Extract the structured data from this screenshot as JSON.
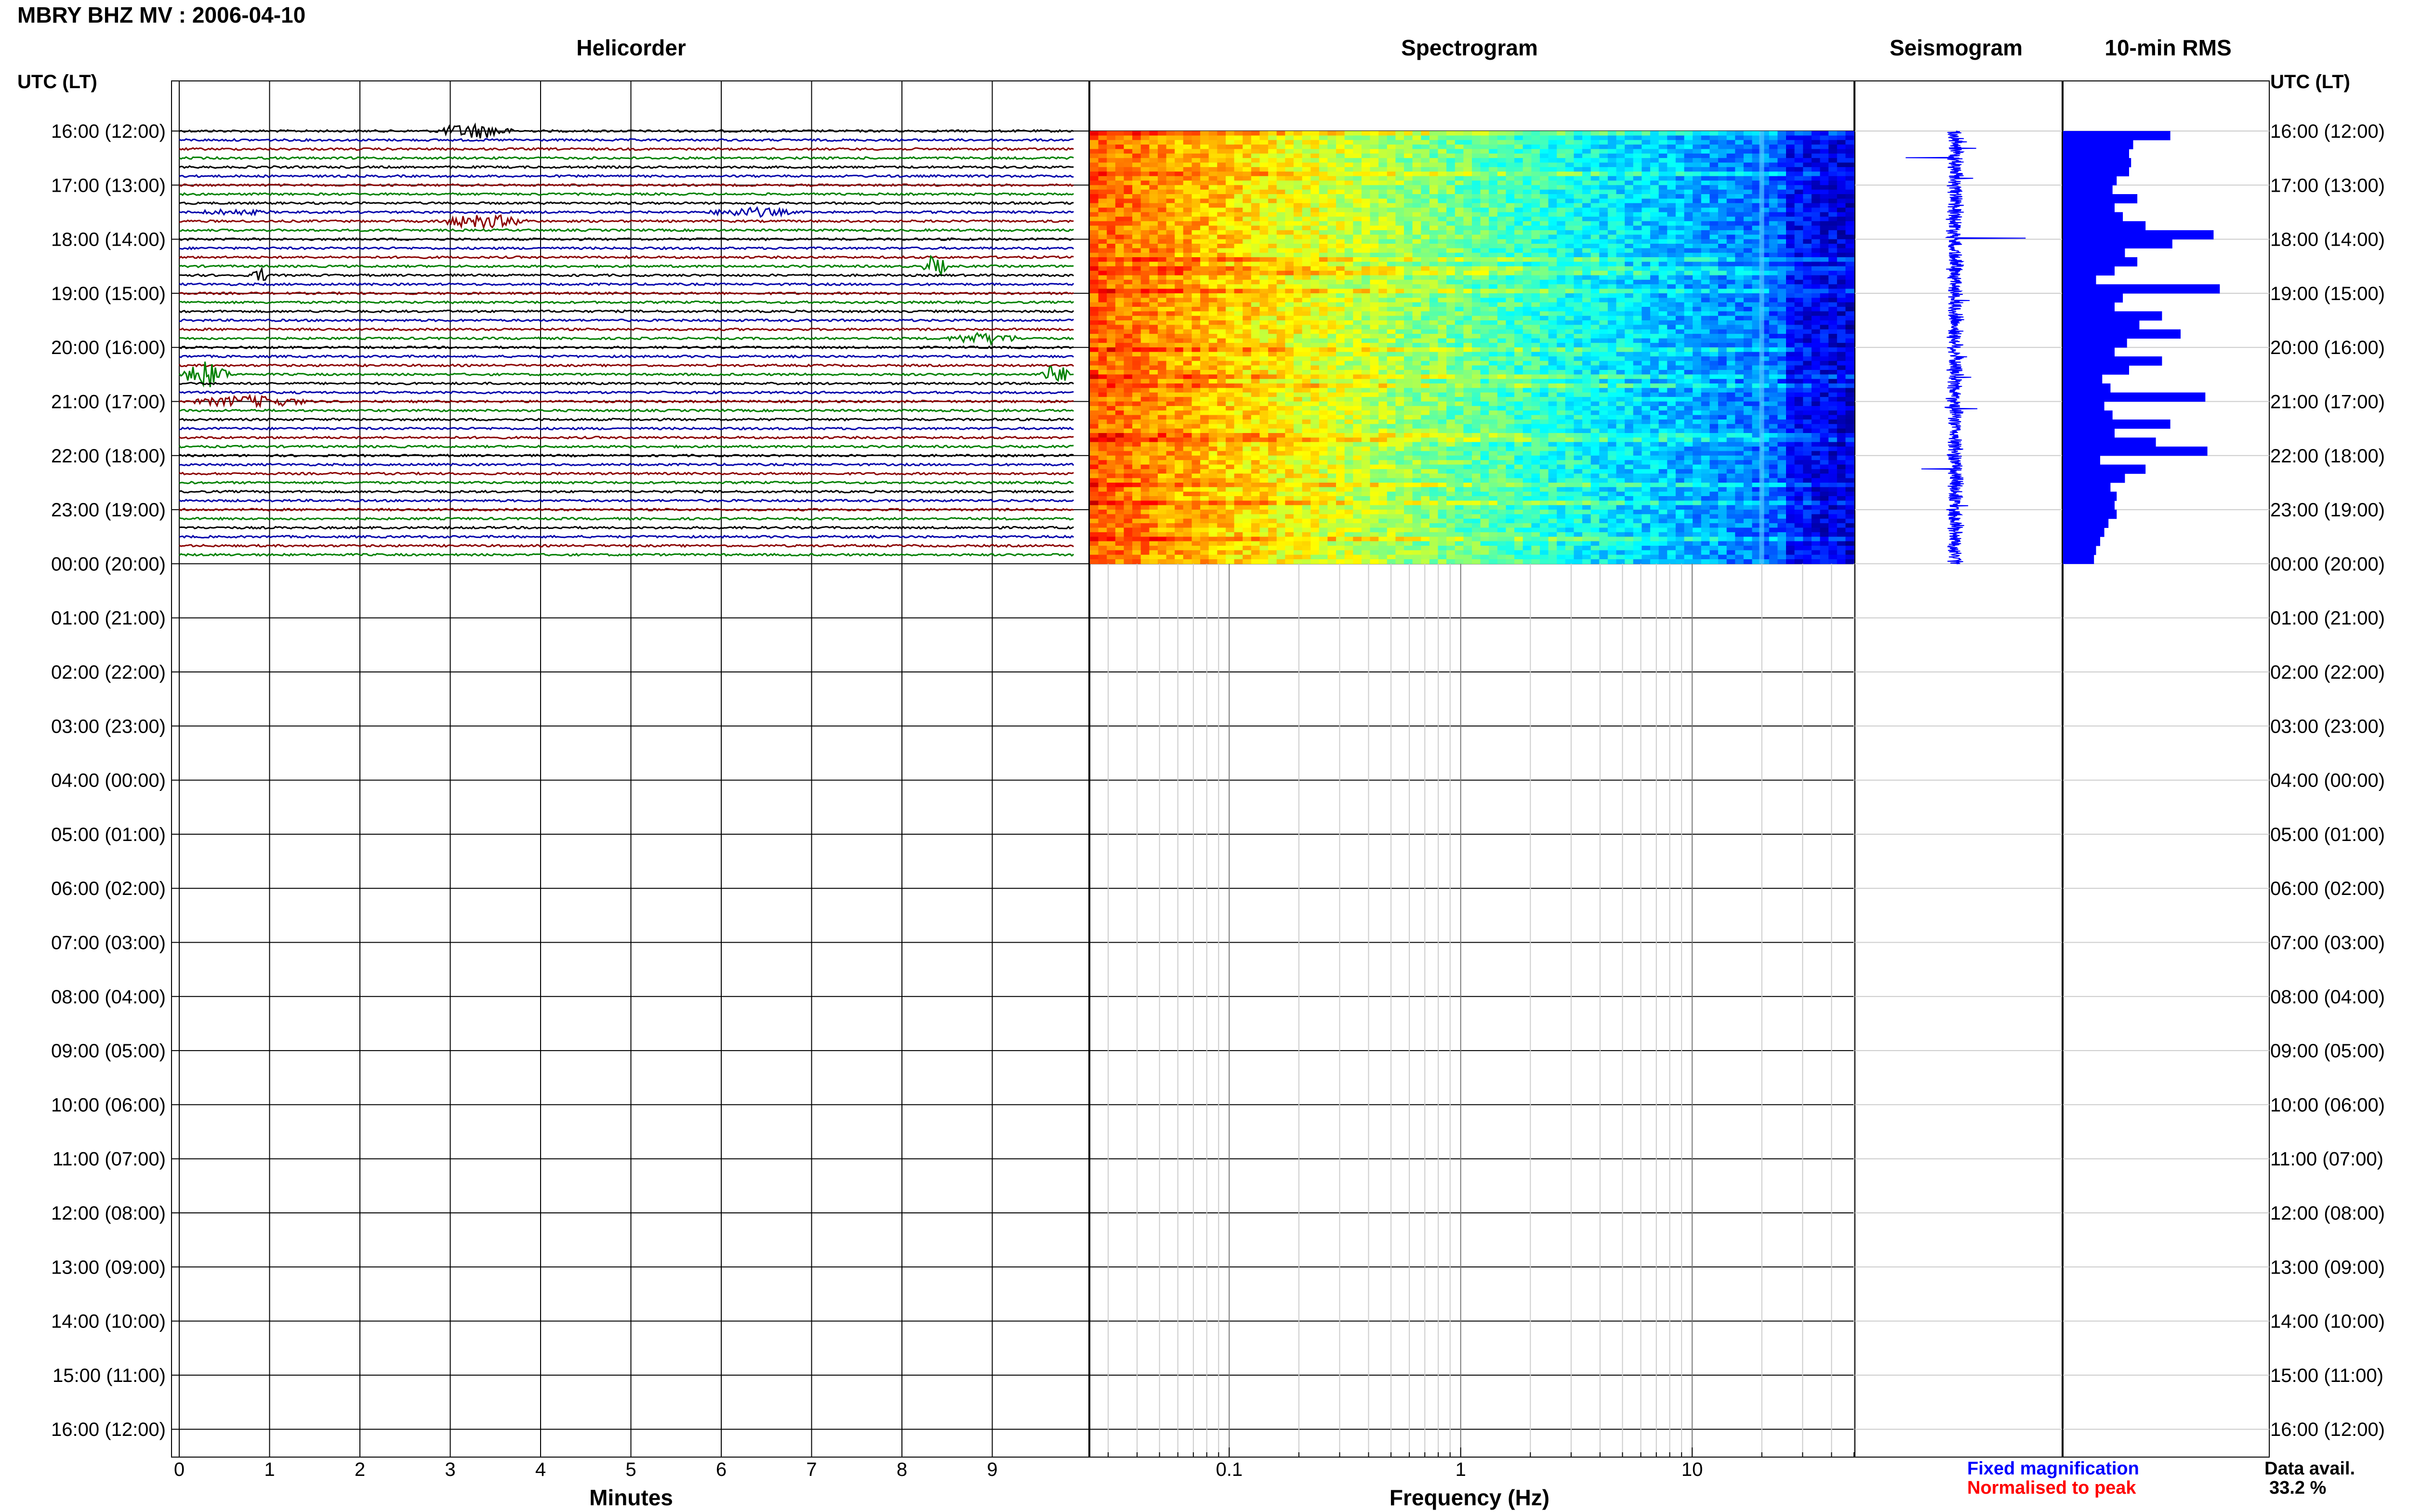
{
  "title": "MBRY BHZ MV : 2006-04-10",
  "panels": {
    "helicorder": "Helicorder",
    "spectrogram": "Spectrogram",
    "seismogram": "Seismogram",
    "rms": "10-min RMS"
  },
  "axes": {
    "utc_header_left": "UTC (LT)",
    "utc_header_right": "UTC (LT)",
    "minutes_label": "Minutes",
    "frequency_label": "Frequency (Hz)"
  },
  "legend": {
    "fixed": "Fixed magnification",
    "normalised": "Normalised to peak",
    "fixed_color": "#0000ff",
    "normalised_color": "#ff0000"
  },
  "availability": {
    "label": "Data avail.",
    "value": "33.2 %"
  },
  "colors": {
    "trace_cycle": [
      "#000000",
      "#0000aa",
      "#8b0000",
      "#008000"
    ],
    "rms_bar": "#0000ff",
    "seismogram": "#0000ff"
  },
  "chart_data": [
    {
      "type": "line",
      "name": "helicorder",
      "xlabel": "Minutes",
      "x_ticks": [
        0,
        1,
        2,
        3,
        4,
        5,
        6,
        7,
        8,
        9
      ],
      "xlim": [
        0,
        10
      ],
      "rows_per_hour": 6,
      "rows_recorded": 48,
      "row_colors_cycle": [
        "black",
        "blue",
        "darkred",
        "green"
      ],
      "y_ticks": [
        "16:00 (12:00)",
        "17:00 (13:00)",
        "18:00 (14:00)",
        "19:00 (15:00)",
        "20:00 (16:00)",
        "21:00 (17:00)",
        "22:00 (18:00)",
        "23:00 (19:00)",
        "00:00 (20:00)",
        "01:00 (21:00)",
        "02:00 (22:00)",
        "03:00 (23:00)",
        "04:00 (00:00)",
        "05:00 (01:00)",
        "06:00 (02:00)",
        "07:00 (03:00)",
        "08:00 (04:00)",
        "09:00 (05:00)",
        "10:00 (06:00)",
        "11:00 (07:00)",
        "12:00 (08:00)",
        "13:00 (09:00)",
        "14:00 (10:00)",
        "15:00 (11:00)",
        "16:00 (12:00)"
      ]
    },
    {
      "type": "heatmap",
      "name": "spectrogram",
      "xlabel": "Frequency (Hz)",
      "x_scale": "log",
      "x_ticks": [
        0.1,
        1,
        10
      ],
      "xlim": [
        0.025,
        50
      ],
      "recorded_rows": 48
    },
    {
      "type": "line",
      "name": "seismogram",
      "recorded_hours": 8
    },
    {
      "type": "bar",
      "name": "10-min RMS",
      "orientation": "horizontal",
      "values": [
        0.52,
        0.34,
        0.32,
        0.33,
        0.32,
        0.26,
        0.24,
        0.36,
        0.25,
        0.29,
        0.4,
        0.73,
        0.53,
        0.3,
        0.36,
        0.25,
        0.16,
        0.76,
        0.29,
        0.25,
        0.48,
        0.37,
        0.57,
        0.31,
        0.25,
        0.48,
        0.32,
        0.19,
        0.23,
        0.69,
        0.2,
        0.24,
        0.52,
        0.25,
        0.45,
        0.7,
        0.18,
        0.4,
        0.3,
        0.23,
        0.26,
        0.25,
        0.26,
        0.22,
        0.2,
        0.18,
        0.16,
        0.15
      ]
    }
  ]
}
